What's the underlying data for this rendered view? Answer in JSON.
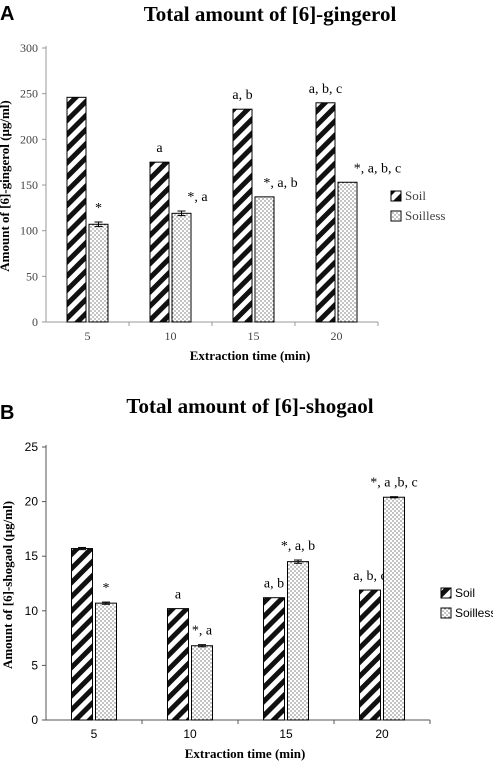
{
  "chart_data": [
    {
      "panel": "A",
      "type": "bar",
      "title": "Total amount of [6]-gingerol",
      "xlabel": "Extraction time (min)",
      "ylabel": "Amount of [6]-gingerol (μg/ml)",
      "categories": [
        "5",
        "10",
        "15",
        "20"
      ],
      "ylim": [
        0,
        300
      ],
      "yticks": [
        "0",
        "50",
        "100",
        "150",
        "200",
        "250",
        "300"
      ],
      "grid": false,
      "legend": "right",
      "series": [
        {
          "name": "Soil",
          "pattern": "diagonal-hatch",
          "values": [
            246,
            175,
            233,
            240
          ],
          "errors": [
            0,
            0,
            0,
            0
          ]
        },
        {
          "name": "Soilless",
          "pattern": "dots",
          "values": [
            107,
            119,
            137,
            153
          ],
          "errors": [
            2.5,
            2.5,
            0,
            0
          ]
        }
      ],
      "annotations": [
        [
          "",
          "*"
        ],
        [
          "a",
          "*, a"
        ],
        [
          "a, b",
          "*, a, b"
        ],
        [
          "a, b, c",
          "*, a, b, c"
        ]
      ]
    },
    {
      "panel": "B",
      "type": "bar",
      "title": "Total amount of [6]-shogaol",
      "xlabel": "Extraction time (min)",
      "ylabel": "Amount of [6]-shogaol (μg/ml)",
      "categories": [
        "5",
        "10",
        "15",
        "20"
      ],
      "ylim": [
        0,
        25
      ],
      "yticks": [
        "0",
        "5",
        "10",
        "15",
        "20",
        "25"
      ],
      "grid": false,
      "legend": "right",
      "series": [
        {
          "name": "Soil",
          "pattern": "diagonal-hatch",
          "values": [
            15.7,
            10.2,
            11.2,
            11.9
          ],
          "errors": [
            0.1,
            0,
            0,
            0
          ]
        },
        {
          "name": "Soilless",
          "pattern": "dots",
          "values": [
            10.7,
            6.8,
            14.5,
            20.4
          ],
          "errors": [
            0.1,
            0.1,
            0.15,
            0.05
          ]
        }
      ],
      "annotations": [
        [
          "",
          "*"
        ],
        [
          "a",
          "*, a"
        ],
        [
          "a, b",
          "*, a, b"
        ],
        [
          "a, b, c",
          "*, a ,b, c"
        ]
      ]
    }
  ]
}
